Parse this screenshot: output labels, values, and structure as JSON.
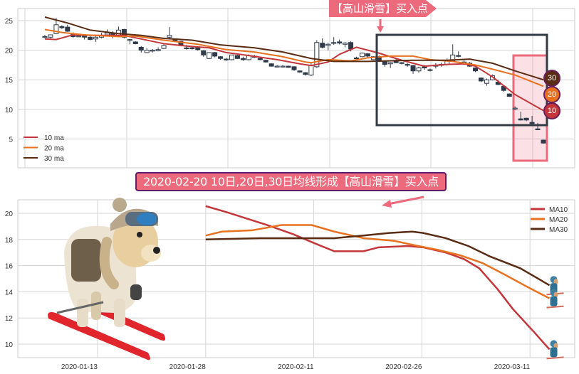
{
  "colors": {
    "ma10": "#c4363a",
    "ma20": "#e8711f",
    "ma30": "#5a2c14",
    "candle": "#2f3a4a",
    "annotation_pink": "#ec6a7c",
    "box_dark": "#333a44"
  },
  "annotations": {
    "top_label": "【高山滑雪】买入点",
    "main_label": "2020-02-20 10日,20日,30日均线形成【高山滑雪】买入点",
    "badges": [
      "30",
      "20",
      "10"
    ]
  },
  "chart_data": [
    {
      "type": "candlestick",
      "ylim": [
        0,
        27
      ],
      "yticks": [
        "5",
        "10",
        "15",
        "20",
        "25"
      ],
      "grid": true,
      "legend": {
        "placement": "bottom-left",
        "entries": [
          "10 ma",
          "20 ma",
          "30 ma"
        ]
      },
      "candles_ohlc": [
        [
          22.2,
          22.6,
          22.0,
          22.3
        ],
        [
          22.2,
          22.6,
          22.0,
          22.6
        ],
        [
          22.8,
          25.5,
          22.7,
          24.3
        ],
        [
          24.0,
          24.2,
          23.6,
          23.8
        ],
        [
          23.9,
          24.3,
          23.1,
          23.2
        ],
        [
          22.8,
          23.0,
          22.1,
          22.3
        ],
        [
          22.4,
          22.6,
          22.3,
          22.4
        ],
        [
          22.4,
          22.6,
          21.8,
          22.2
        ],
        [
          22.2,
          22.4,
          21.7,
          21.8
        ],
        [
          21.9,
          22.4,
          21.4,
          22.2
        ],
        [
          22.2,
          22.9,
          22.0,
          22.5
        ],
        [
          22.6,
          23.5,
          22.4,
          22.9
        ],
        [
          22.9,
          23.2,
          22.0,
          22.6
        ],
        [
          22.4,
          24.0,
          22.2,
          23.4
        ],
        [
          23.5,
          23.6,
          22.0,
          22.2
        ],
        [
          21.8,
          21.9,
          21.0,
          21.8
        ],
        [
          21.4,
          21.5,
          21.0,
          21.1
        ],
        [
          20.5,
          20.7,
          19.6,
          20.0
        ],
        [
          19.6,
          20.3,
          19.6,
          20.0
        ],
        [
          20.0,
          20.2,
          19.6,
          20.0
        ],
        [
          19.9,
          20.5,
          19.8,
          20.1
        ],
        [
          20.3,
          21.0,
          20.2,
          20.8
        ],
        [
          22.2,
          23.9,
          21.8,
          22.5
        ],
        [
          21.8,
          22.0,
          21.4,
          21.6
        ],
        [
          21.5,
          21.6,
          20.8,
          20.9
        ],
        [
          20.4,
          20.9,
          20.1,
          20.3
        ],
        [
          20.4,
          20.6,
          20.1,
          20.3
        ],
        [
          20.5,
          20.6,
          19.9,
          20.1
        ],
        [
          19.9,
          20.0,
          18.9,
          19.2
        ],
        [
          18.6,
          19.6,
          18.5,
          19.6
        ],
        [
          19.6,
          19.7,
          18.8,
          19.0
        ],
        [
          18.9,
          19.0,
          18.4,
          18.6
        ],
        [
          18.5,
          18.7,
          18.2,
          18.4
        ],
        [
          18.4,
          19.2,
          18.3,
          19.2
        ],
        [
          19.1,
          19.2,
          18.5,
          18.6
        ],
        [
          18.6,
          18.9,
          18.2,
          18.4
        ],
        [
          18.4,
          19.3,
          18.3,
          19.1
        ],
        [
          19.0,
          19.2,
          18.7,
          18.8
        ],
        [
          18.6,
          18.8,
          18.3,
          18.4
        ],
        [
          18.3,
          18.4,
          17.9,
          18.0
        ],
        [
          17.7,
          17.8,
          17.2,
          17.3
        ],
        [
          17.3,
          17.5,
          17.1,
          17.3
        ],
        [
          17.3,
          17.5,
          17.1,
          17.3
        ],
        [
          17.3,
          17.4,
          17.0,
          17.1
        ],
        [
          17.2,
          17.3,
          16.5,
          16.7
        ],
        [
          16.5,
          16.6,
          16.2,
          16.3
        ],
        [
          16.2,
          16.3,
          15.7,
          15.9
        ],
        [
          15.8,
          17.8,
          15.6,
          17.4
        ],
        [
          17.2,
          21.7,
          17.0,
          21.3
        ],
        [
          21.2,
          22.0,
          20.3,
          20.5
        ],
        [
          20.8,
          21.3,
          20.0,
          21.0
        ],
        [
          21.2,
          22.2,
          20.9,
          21.3
        ],
        [
          21.4,
          21.8,
          21.0,
          21.2
        ],
        [
          21.0,
          21.4,
          20.5,
          21.2
        ],
        [
          21.3,
          21.5,
          19.8,
          20.2
        ],
        [
          18.7,
          18.9,
          18.5,
          18.6
        ],
        [
          18.9,
          19.6,
          18.8,
          19.5
        ],
        [
          19.4,
          19.5,
          18.8,
          19.0
        ],
        [
          18.4,
          19.0,
          18.3,
          18.9
        ],
        [
          18.9,
          19.1,
          18.0,
          18.2
        ],
        [
          18.1,
          18.2,
          17.2,
          17.6
        ],
        [
          17.7,
          18.0,
          17.0,
          17.9
        ],
        [
          18.3,
          18.5,
          17.8,
          17.9
        ],
        [
          17.9,
          18.0,
          17.6,
          17.8
        ],
        [
          17.6,
          17.8,
          17.2,
          17.5
        ],
        [
          17.4,
          17.5,
          16.0,
          16.5
        ],
        [
          16.5,
          17.2,
          16.2,
          17.0
        ],
        [
          17.2,
          17.5,
          16.7,
          17.0
        ],
        [
          16.7,
          16.9,
          16.4,
          16.7
        ],
        [
          17.3,
          17.8,
          16.9,
          17.5
        ],
        [
          17.6,
          17.9,
          17.2,
          17.6
        ],
        [
          17.6,
          18.6,
          17.4,
          18.2
        ],
        [
          18.2,
          21.0,
          18.1,
          19.2
        ],
        [
          19.1,
          19.8,
          18.8,
          19.0
        ],
        [
          18.0,
          18.3,
          17.7,
          18.0
        ],
        [
          17.8,
          18.0,
          17.2,
          17.3
        ],
        [
          17.0,
          17.1,
          16.3,
          16.5
        ],
        [
          15.3,
          15.4,
          14.6,
          14.8
        ],
        [
          14.4,
          15.2,
          14.0,
          15.0
        ],
        [
          15.0,
          15.9,
          14.9,
          15.7
        ],
        [
          14.6,
          15.0,
          14.1,
          14.2
        ],
        [
          13.9,
          14.0,
          13.0,
          13.2
        ],
        [
          12.6,
          12.7,
          12.1,
          12.2
        ],
        [
          10.2,
          10.5,
          9.9,
          10.2
        ],
        [
          8.4,
          9.6,
          8.1,
          8.2
        ],
        [
          8.5,
          8.6,
          8.0,
          8.2
        ],
        [
          7.8,
          8.9,
          7.3,
          7.6
        ],
        [
          6.7,
          7.7,
          6.5,
          6.6
        ],
        [
          4.8,
          4.9,
          4.2,
          4.3
        ]
      ],
      "series": [
        {
          "name": "10 ma",
          "points": [
            [
              1,
              21.9
            ],
            [
              3,
              21.8
            ],
            [
              6,
              22.6
            ],
            [
              10,
              22.5
            ],
            [
              15,
              22.5
            ],
            [
              18,
              21.9
            ],
            [
              22,
              21.1
            ],
            [
              26,
              20.7
            ],
            [
              30,
              20.4
            ],
            [
              33,
              19.6
            ],
            [
              37,
              19.1
            ],
            [
              42,
              18.4
            ],
            [
              46,
              17.7
            ],
            [
              48,
              17.4
            ],
            [
              51,
              18.0
            ],
            [
              53,
              19.3
            ],
            [
              56,
              20.5
            ],
            [
              60,
              19.5
            ],
            [
              64,
              18.3
            ],
            [
              68,
              17.3
            ],
            [
              72,
              17.6
            ],
            [
              75,
              17.7
            ],
            [
              77,
              17.3
            ],
            [
              80,
              15.5
            ],
            [
              84,
              12.5
            ],
            [
              89,
              9.8
            ]
          ]
        },
        {
          "name": "20 ma",
          "points": [
            [
              1,
              23.5
            ],
            [
              4,
              23.0
            ],
            [
              8,
              22.6
            ],
            [
              14,
              22.3
            ],
            [
              17,
              22.4
            ],
            [
              22,
              21.7
            ],
            [
              28,
              21.0
            ],
            [
              33,
              20.1
            ],
            [
              38,
              19.7
            ],
            [
              43,
              18.9
            ],
            [
              47,
              18.0
            ],
            [
              48,
              17.9
            ],
            [
              51,
              18.4
            ],
            [
              55,
              18.2
            ],
            [
              58,
              18.7
            ],
            [
              62,
              19.0
            ],
            [
              66,
              19.0
            ],
            [
              69,
              18.4
            ],
            [
              73,
              18.1
            ],
            [
              77,
              17.5
            ],
            [
              80,
              16.8
            ],
            [
              84,
              15.8
            ],
            [
              89,
              13.9
            ]
          ]
        },
        {
          "name": "30 ma",
          "points": [
            [
              1,
              25.6
            ],
            [
              5,
              24.6
            ],
            [
              9,
              23.4
            ],
            [
              14,
              22.8
            ],
            [
              18,
              22.5
            ],
            [
              22,
              22.0
            ],
            [
              27,
              21.7
            ],
            [
              32,
              20.9
            ],
            [
              38,
              20.4
            ],
            [
              43,
              19.7
            ],
            [
              48,
              18.6
            ],
            [
              52,
              18.1
            ],
            [
              58,
              18.1
            ],
            [
              66,
              18.3
            ],
            [
              72,
              18.3
            ],
            [
              76,
              18.5
            ],
            [
              80,
              17.8
            ],
            [
              84,
              16.5
            ],
            [
              89,
              15.0
            ]
          ]
        }
      ]
    },
    {
      "type": "line",
      "ylim": [
        9,
        21
      ],
      "yticks": [
        "10",
        "12",
        "14",
        "16",
        "18",
        "20"
      ],
      "xticks": [
        "2020-01-13",
        "2020-01-28",
        "2020-02-11",
        "2020-02-26",
        "2020-03-11"
      ],
      "grid": true,
      "legend": {
        "placement": "top-right",
        "entries": [
          "MA10",
          "MA20",
          "MA30"
        ]
      },
      "series": [
        {
          "name": "MA10",
          "points": [
            [
              10,
              20.55
            ],
            [
              11.9,
              20.1
            ],
            [
              15.7,
              19.1
            ],
            [
              18.1,
              18.4
            ],
            [
              20.1,
              17.7
            ],
            [
              21.9,
              17.1
            ],
            [
              24.6,
              17.1
            ],
            [
              26,
              17.4
            ],
            [
              28.7,
              17.5
            ],
            [
              30.1,
              17.4
            ],
            [
              32.2,
              17.0
            ],
            [
              33.9,
              16.5
            ],
            [
              35.3,
              15.8
            ],
            [
              37,
              14.2
            ],
            [
              38.4,
              12.7
            ],
            [
              40.4,
              10.9
            ],
            [
              41.8,
              9.6
            ]
          ]
        },
        {
          "name": "MA20",
          "points": [
            [
              10,
              18.3
            ],
            [
              11.5,
              18.6
            ],
            [
              14.3,
              18.7
            ],
            [
              17,
              19.1
            ],
            [
              19.8,
              19.1
            ],
            [
              21.9,
              18.6
            ],
            [
              24.6,
              18.1
            ],
            [
              27.4,
              17.9
            ],
            [
              29.1,
              17.6
            ],
            [
              31.5,
              17.2
            ],
            [
              33.5,
              16.8
            ],
            [
              35.6,
              16.2
            ],
            [
              37.7,
              15.3
            ],
            [
              39.7,
              14.4
            ],
            [
              41.8,
              13.5
            ]
          ]
        },
        {
          "name": "MA30",
          "points": [
            [
              10,
              18.0
            ],
            [
              15,
              18.1
            ],
            [
              21.9,
              18.1
            ],
            [
              24.6,
              18.3
            ],
            [
              27,
              18.5
            ],
            [
              29.1,
              18.6
            ],
            [
              30.1,
              18.5
            ],
            [
              32.2,
              18.1
            ],
            [
              34.3,
              17.5
            ],
            [
              36.3,
              16.7
            ],
            [
              39.1,
              15.8
            ],
            [
              41.8,
              14.5
            ]
          ]
        }
      ]
    }
  ]
}
